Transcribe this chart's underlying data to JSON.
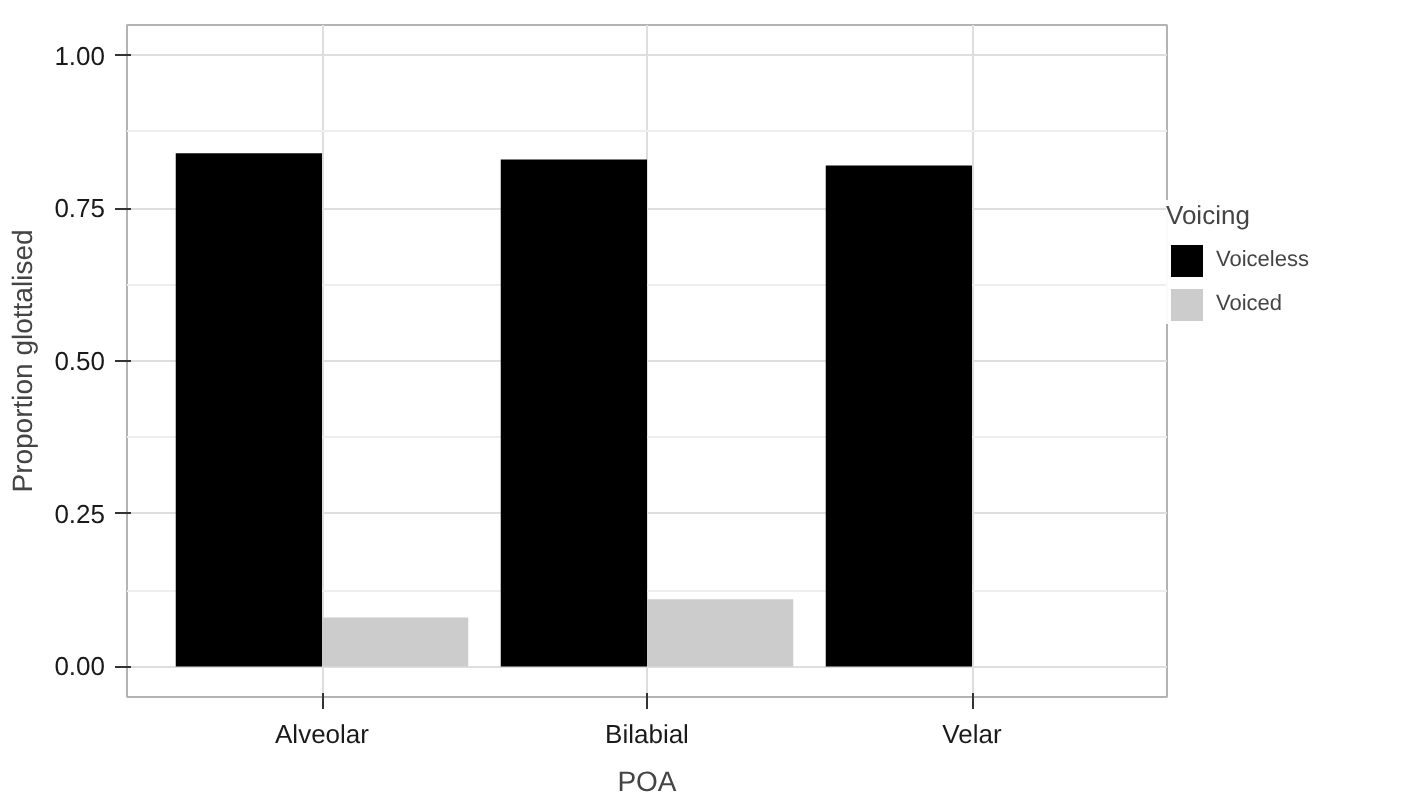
{
  "chart_data": {
    "type": "bar",
    "xlabel": "POA",
    "ylabel": "Proportion glottalised",
    "legend_title": "Voicing",
    "categories": [
      "Alveolar",
      "Bilabial",
      "Velar"
    ],
    "series": [
      {
        "name": "Voiceless",
        "color": "#000000",
        "values": [
          0.84,
          0.83,
          0.82
        ]
      },
      {
        "name": "Voiced",
        "color": "#cccccc",
        "values": [
          0.08,
          0.11,
          null
        ]
      }
    ],
    "ylim": [
      -0.05,
      1.05
    ],
    "yticks": [
      {
        "value": 0,
        "label": "0.00"
      },
      {
        "value": 0.25,
        "label": "0.25"
      },
      {
        "value": 0.5,
        "label": "0.50"
      },
      {
        "value": 0.75,
        "label": "0.75"
      },
      {
        "value": 1,
        "label": "1.00"
      }
    ],
    "grid": true,
    "legend": "right"
  }
}
